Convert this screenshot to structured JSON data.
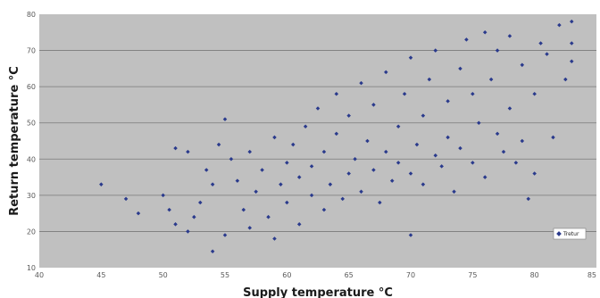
{
  "chart_data": {
    "type": "scatter",
    "title": "",
    "xlabel": "Supply temperature °C",
    "ylabel": "Return temperature °C",
    "xlim": [
      40,
      85
    ],
    "ylim": [
      10,
      80
    ],
    "x_ticks": [
      "40",
      "45",
      "50",
      "55",
      "60",
      "65",
      "70",
      "75",
      "80",
      "85"
    ],
    "y_ticks": [
      "10",
      "20",
      "30",
      "40",
      "50",
      "60",
      "70",
      "80"
    ],
    "grid": "horizontal",
    "legend_position": "bottom-right",
    "series": [
      {
        "name": "Tretur",
        "color": "#2a3a8c",
        "points": [
          [
            45,
            33
          ],
          [
            47,
            29
          ],
          [
            48,
            25
          ],
          [
            50,
            30
          ],
          [
            50.5,
            26
          ],
          [
            51,
            43
          ],
          [
            51,
            22
          ],
          [
            52,
            42
          ],
          [
            52,
            20
          ],
          [
            52.5,
            24
          ],
          [
            53,
            28
          ],
          [
            53.5,
            37
          ],
          [
            54,
            14.5
          ],
          [
            54,
            33
          ],
          [
            54.5,
            44
          ],
          [
            55,
            51
          ],
          [
            55,
            19
          ],
          [
            55.5,
            40
          ],
          [
            56,
            34
          ],
          [
            56.5,
            26
          ],
          [
            57,
            42
          ],
          [
            57,
            21
          ],
          [
            57.5,
            31
          ],
          [
            58,
            37
          ],
          [
            58.5,
            24
          ],
          [
            59,
            46
          ],
          [
            59,
            18
          ],
          [
            59.5,
            33
          ],
          [
            60,
            39
          ],
          [
            60,
            28
          ],
          [
            60.5,
            44
          ],
          [
            61,
            35
          ],
          [
            61,
            22
          ],
          [
            61.5,
            49
          ],
          [
            62,
            30
          ],
          [
            62,
            38
          ],
          [
            62.5,
            54
          ],
          [
            63,
            26
          ],
          [
            63,
            42
          ],
          [
            63.5,
            33
          ],
          [
            64,
            47
          ],
          [
            64,
            58
          ],
          [
            64.5,
            29
          ],
          [
            65,
            36
          ],
          [
            65,
            52
          ],
          [
            65.5,
            40
          ],
          [
            66,
            31
          ],
          [
            66,
            61
          ],
          [
            66.5,
            45
          ],
          [
            67,
            37
          ],
          [
            67,
            55
          ],
          [
            67.5,
            28
          ],
          [
            68,
            42
          ],
          [
            68,
            64
          ],
          [
            68.5,
            34
          ],
          [
            69,
            49
          ],
          [
            69,
            39
          ],
          [
            69.5,
            58
          ],
          [
            70,
            19
          ],
          [
            70,
            36
          ],
          [
            70,
            68
          ],
          [
            70.5,
            44
          ],
          [
            71,
            52
          ],
          [
            71,
            33
          ],
          [
            71.5,
            62
          ],
          [
            72,
            41
          ],
          [
            72,
            70
          ],
          [
            72.5,
            38
          ],
          [
            73,
            56
          ],
          [
            73,
            46
          ],
          [
            73.5,
            31
          ],
          [
            74,
            65
          ],
          [
            74,
            43
          ],
          [
            74.5,
            73
          ],
          [
            75,
            39
          ],
          [
            75,
            58
          ],
          [
            75.5,
            50
          ],
          [
            76,
            75
          ],
          [
            76,
            35
          ],
          [
            76.5,
            62
          ],
          [
            77,
            47
          ],
          [
            77,
            70
          ],
          [
            77.5,
            42
          ],
          [
            78,
            54
          ],
          [
            78,
            74
          ],
          [
            78.5,
            39
          ],
          [
            79,
            66
          ],
          [
            79,
            45
          ],
          [
            79.5,
            29
          ],
          [
            80,
            58
          ],
          [
            80,
            36
          ],
          [
            80.5,
            72
          ],
          [
            81,
            69
          ],
          [
            81.5,
            46
          ],
          [
            82,
            77
          ],
          [
            82.5,
            62
          ],
          [
            83,
            78
          ],
          [
            83,
            72
          ],
          [
            83,
            67
          ]
        ]
      }
    ]
  }
}
